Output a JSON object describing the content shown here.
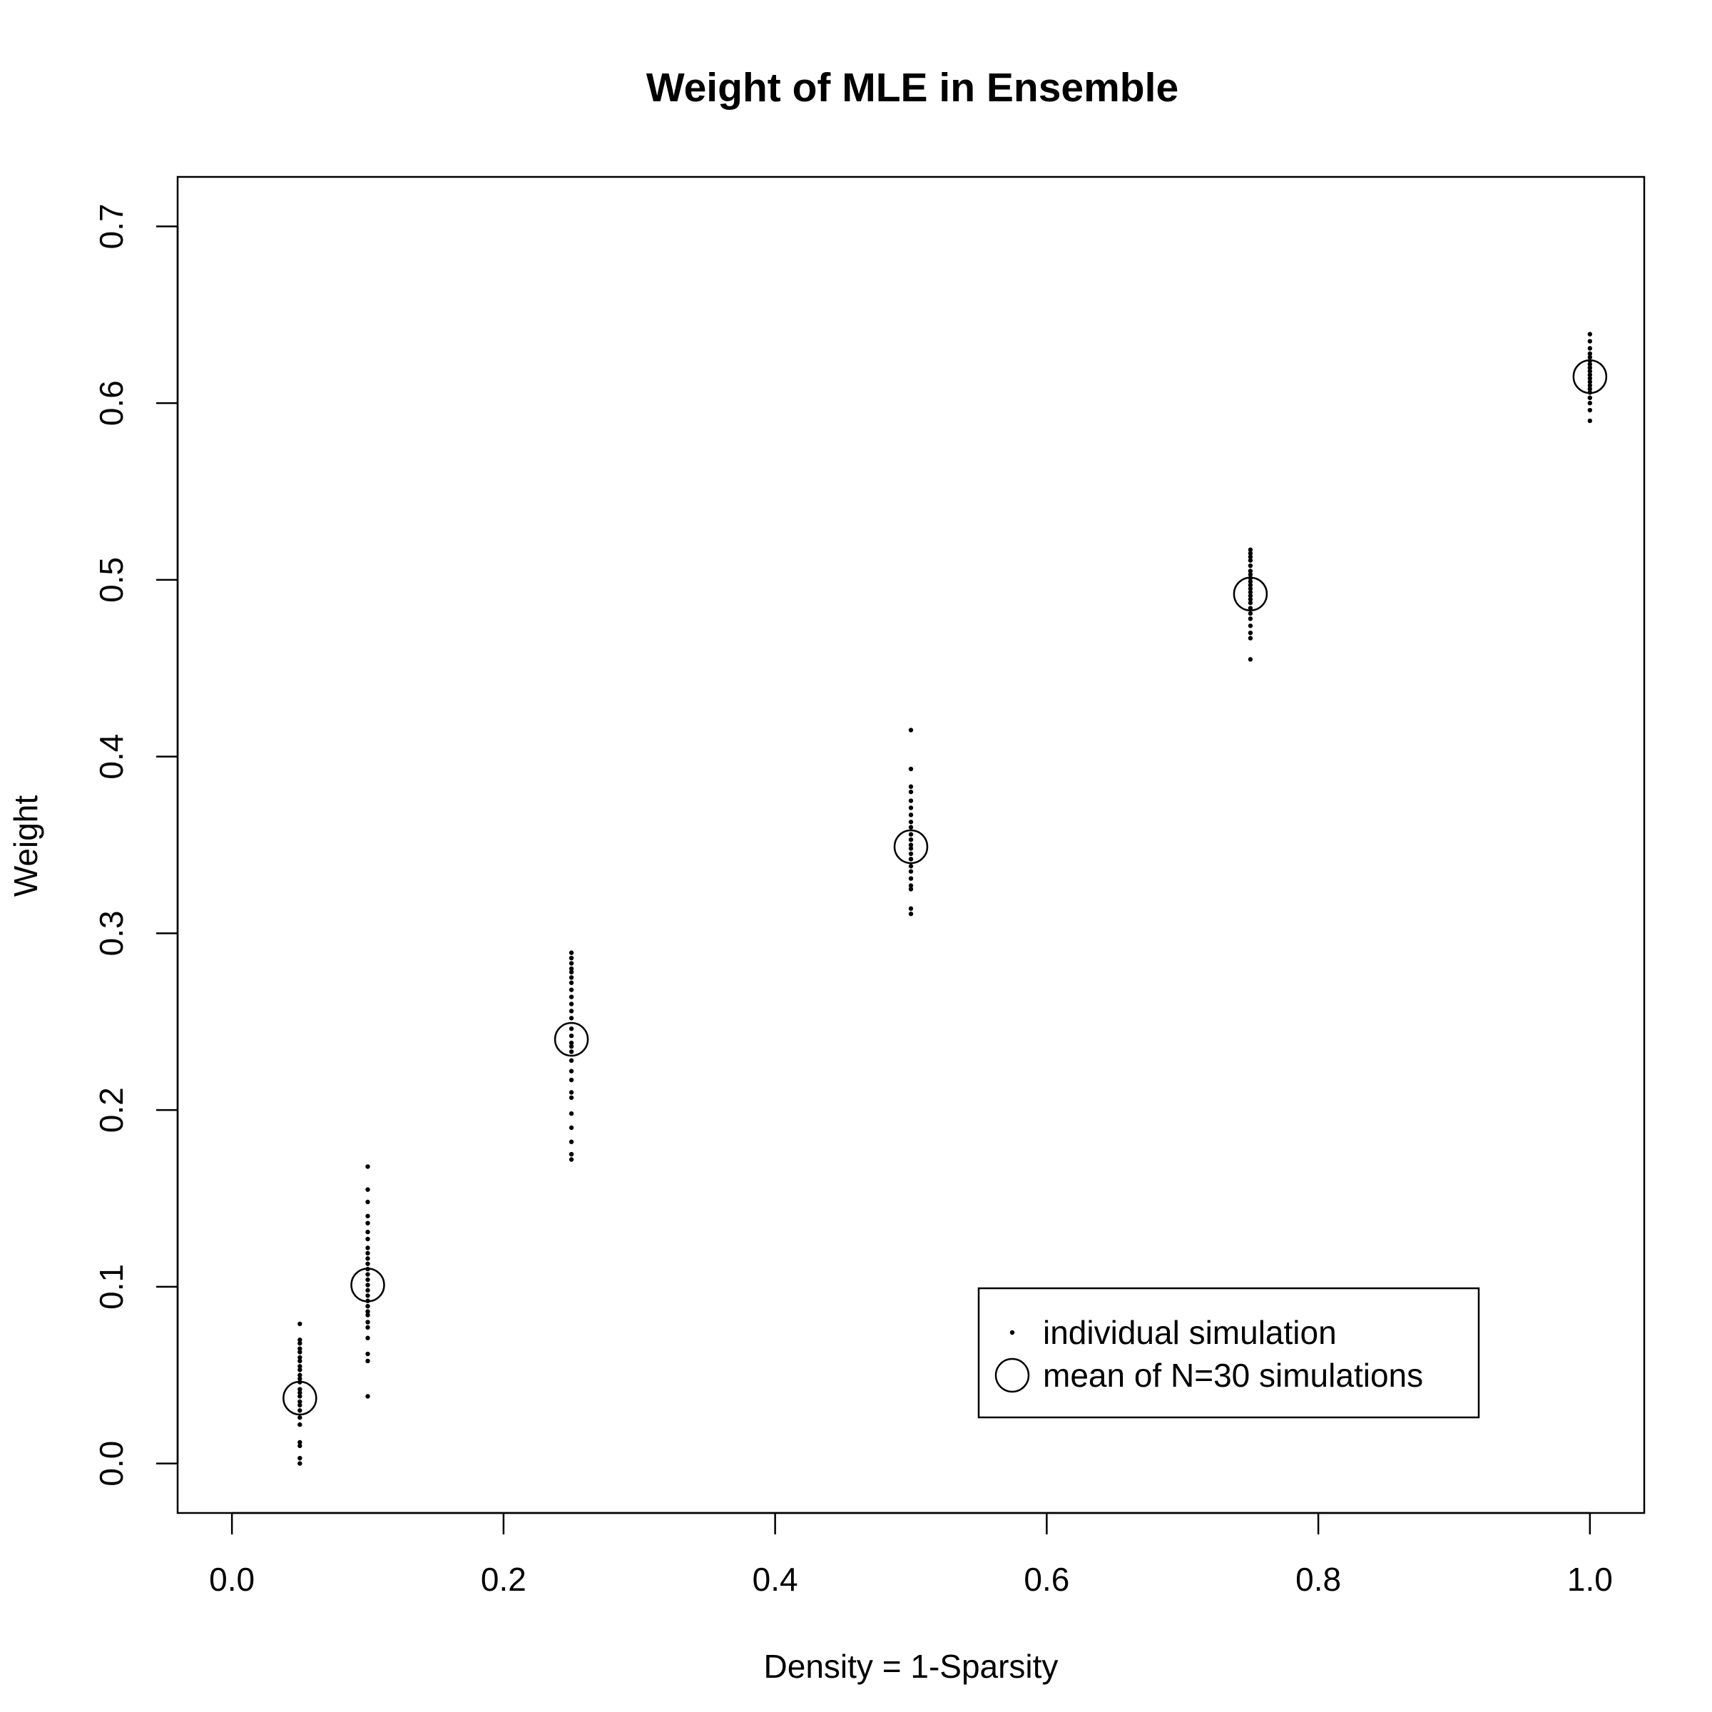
{
  "chart_data": {
    "type": "scatter",
    "title": "Weight of MLE in Ensemble",
    "xlabel": "Density = 1-Sparsity",
    "ylabel": "Weight",
    "xlim": [
      -0.04,
      1.04
    ],
    "ylim": [
      -0.028,
      0.728
    ],
    "xticks": [
      0.0,
      0.2,
      0.4,
      0.6,
      0.8,
      1.0
    ],
    "xtick_labels": [
      "0.0",
      "0.2",
      "0.4",
      "0.6",
      "0.8",
      "1.0"
    ],
    "yticks": [
      0.0,
      0.1,
      0.2,
      0.3,
      0.4,
      0.5,
      0.6,
      0.7
    ],
    "ytick_labels": [
      "0.0",
      "0.1",
      "0.2",
      "0.3",
      "0.4",
      "0.5",
      "0.6",
      "0.7"
    ],
    "grid": false,
    "legend_position": "bottom-right",
    "series": [
      {
        "name": "individual simulation",
        "marker": "small-dot",
        "groups": [
          {
            "x": 0.05,
            "y": [
              0.0,
              0.003,
              0.01,
              0.012,
              0.022,
              0.026,
              0.03,
              0.033,
              0.035,
              0.038,
              0.04,
              0.042,
              0.046,
              0.048,
              0.05,
              0.053,
              0.055,
              0.058,
              0.06,
              0.063,
              0.065,
              0.068,
              0.07,
              0.079
            ]
          },
          {
            "x": 0.1,
            "y": [
              0.038,
              0.058,
              0.062,
              0.071,
              0.077,
              0.08,
              0.084,
              0.086,
              0.089,
              0.092,
              0.095,
              0.098,
              0.101,
              0.104,
              0.107,
              0.11,
              0.113,
              0.116,
              0.119,
              0.122,
              0.127,
              0.131,
              0.136,
              0.14,
              0.148,
              0.155,
              0.168
            ]
          },
          {
            "x": 0.25,
            "y": [
              0.172,
              0.175,
              0.182,
              0.19,
              0.198,
              0.207,
              0.21,
              0.217,
              0.222,
              0.228,
              0.233,
              0.236,
              0.238,
              0.242,
              0.246,
              0.252,
              0.256,
              0.26,
              0.264,
              0.268,
              0.272,
              0.275,
              0.278,
              0.28,
              0.283,
              0.286,
              0.289
            ]
          },
          {
            "x": 0.5,
            "y": [
              0.311,
              0.314,
              0.325,
              0.327,
              0.331,
              0.335,
              0.338,
              0.342,
              0.345,
              0.348,
              0.35,
              0.353,
              0.356,
              0.36,
              0.363,
              0.367,
              0.371,
              0.375,
              0.38,
              0.383,
              0.393,
              0.415
            ]
          },
          {
            "x": 0.75,
            "y": [
              0.455,
              0.467,
              0.47,
              0.474,
              0.478,
              0.481,
              0.484,
              0.487,
              0.489,
              0.491,
              0.493,
              0.495,
              0.497,
              0.499,
              0.501,
              0.503,
              0.505,
              0.508,
              0.511,
              0.513,
              0.515,
              0.517
            ]
          },
          {
            "x": 1.0,
            "y": [
              0.59,
              0.596,
              0.6,
              0.603,
              0.606,
              0.608,
              0.61,
              0.612,
              0.614,
              0.616,
              0.618,
              0.62,
              0.622,
              0.624,
              0.626,
              0.628,
              0.631,
              0.635,
              0.639
            ]
          }
        ]
      },
      {
        "name": "mean of N=30 simulations",
        "marker": "open-circle",
        "x": [
          0.05,
          0.1,
          0.25,
          0.5,
          0.75,
          1.0
        ],
        "y": [
          0.037,
          0.101,
          0.24,
          0.349,
          0.492,
          0.615
        ]
      }
    ]
  }
}
